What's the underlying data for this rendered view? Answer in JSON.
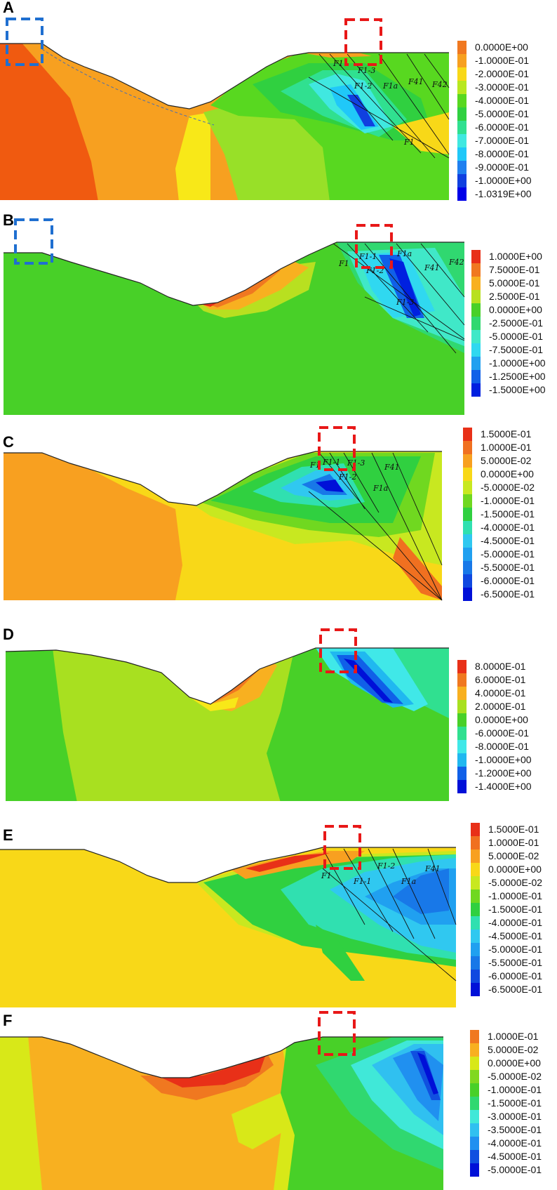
{
  "panels": [
    {
      "label": "A",
      "faults": [
        "F1",
        "F1-3",
        "F1-2",
        "F1a",
        "F41",
        "F42",
        "F1"
      ],
      "legend": {
        "values": [
          "0.0000E+00",
          "-1.0000E-01",
          "-2.0000E-01",
          "-3.0000E-01",
          "-4.0000E-01",
          "-5.0000E-01",
          "-6.0000E-01",
          "-7.0000E-01",
          "-8.0000E-01",
          "-9.0000E-01",
          "-1.0000E+00",
          "-1.0319E+00"
        ],
        "colors": [
          "#f07820",
          "#f7a020",
          "#f8d818",
          "#b8e820",
          "#58d820",
          "#30d040",
          "#30e090",
          "#40e8e0",
          "#20c8f8",
          "#2080f0",
          "#1040e0",
          "#0000e8"
        ]
      }
    },
    {
      "label": "B",
      "faults": [
        "F1",
        "F1-1",
        "F1-2",
        "F1a",
        "F41",
        "F42",
        "F1-3"
      ],
      "legend": {
        "values": [
          "1.0000E+00",
          "7.5000E-01",
          "5.0000E-01",
          "2.5000E-01",
          "0.0000E+00",
          "-2.5000E-01",
          "-5.0000E-01",
          "-7.5000E-01",
          "-1.0000E+00",
          "-1.2500E+00",
          "-1.5000E+00"
        ],
        "colors": [
          "#e83018",
          "#f07820",
          "#f8b020",
          "#b8e020",
          "#48d028",
          "#30d870",
          "#40e8c8",
          "#30d8f0",
          "#20a0f0",
          "#1060e8",
          "#0020e0"
        ]
      }
    },
    {
      "label": "C",
      "faults": [
        "F1",
        "F1-1",
        "F1-3",
        "F1-2",
        "F41",
        "F1a"
      ],
      "legend": {
        "values": [
          "1.5000E-01",
          "1.0000E-01",
          "5.0000E-02",
          "0.0000E+00",
          "-5.0000E-02",
          "-1.0000E-01",
          "-1.5000E-01",
          "-4.0000E-01",
          "-4.5000E-01",
          "-5.0000E-01",
          "-5.5000E-01",
          "-6.0000E-01",
          "-6.5000E-01"
        ],
        "colors": [
          "#e83018",
          "#f07020",
          "#f8a020",
          "#f8d818",
          "#c8e820",
          "#70d820",
          "#30d040",
          "#30e0b0",
          "#30c8f0",
          "#20a0f0",
          "#1878e8",
          "#1048e0",
          "#0010d8"
        ]
      }
    },
    {
      "label": "D",
      "faults": [],
      "legend": {
        "values": [
          "8.0000E-01",
          "6.0000E-01",
          "4.0000E-01",
          "2.0000E-01",
          "0.0000E+00",
          "-6.0000E-01",
          "-8.0000E-01",
          "-1.0000E+00",
          "-1.2000E+00",
          "-1.4000E+00"
        ],
        "colors": [
          "#e83018",
          "#f07820",
          "#f8b020",
          "#a8e020",
          "#48d028",
          "#30e090",
          "#40e8e8",
          "#20b8f0",
          "#1060e8",
          "#0010d8"
        ]
      }
    },
    {
      "label": "E",
      "faults": [
        "F1",
        "F1-1",
        "F1-2",
        "F1a",
        "F41"
      ],
      "legend": {
        "values": [
          "1.5000E-01",
          "1.0000E-01",
          "5.0000E-02",
          "0.0000E+00",
          "-5.0000E-02",
          "-1.0000E-01",
          "-1.5000E-01",
          "-4.0000E-01",
          "-4.5000E-01",
          "-5.0000E-01",
          "-5.5000E-01",
          "-6.0000E-01",
          "-6.5000E-01"
        ],
        "colors": [
          "#e83018",
          "#f07020",
          "#f8a020",
          "#f8d818",
          "#c8e820",
          "#70d820",
          "#30d040",
          "#30e0b0",
          "#30c8f0",
          "#20a0f0",
          "#1878e8",
          "#1048e0",
          "#0010d8"
        ]
      }
    },
    {
      "label": "F",
      "faults": [],
      "legend": {
        "values": [
          "1.0000E-01",
          "5.0000E-02",
          "0.0000E+00",
          "-5.0000E-02",
          "-1.0000E-01",
          "-1.5000E-01",
          "-3.0000E-01",
          "-3.5000E-01",
          "-4.0000E-01",
          "-4.5000E-01",
          "-5.0000E-01"
        ],
        "colors": [
          "#f07820",
          "#f8b020",
          "#d8e818",
          "#80d820",
          "#48d028",
          "#30d870",
          "#40e8d8",
          "#30c0f0",
          "#2090f0",
          "#1050e0",
          "#0010d8"
        ]
      }
    }
  ]
}
